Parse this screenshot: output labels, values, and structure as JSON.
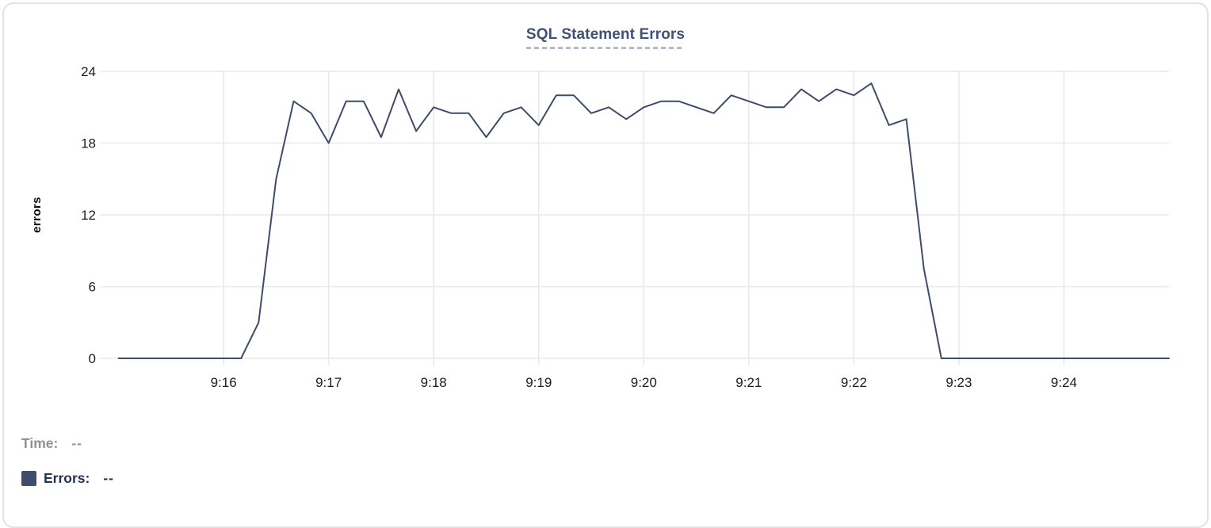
{
  "panel": {
    "title": "SQL Statement Errors"
  },
  "legend": {
    "time_label": "Time:",
    "time_value": "--",
    "errors_label": "Errors:",
    "errors_value": "--"
  },
  "colors": {
    "accent_line": "#3E4C6A",
    "grid": "#E9E9E9",
    "title": "#3F5273",
    "title_underline": "#AEBDD3",
    "tick_text": "#1C1C1C",
    "time_label": "#8D9197",
    "errors_label": "#26324E",
    "legend_swatch": "#3E4E68",
    "panel_border": "#E2E3E7"
  },
  "chart_data": {
    "type": "line",
    "title": "SQL Statement Errors",
    "xlabel": "",
    "ylabel": "errors",
    "ylim": [
      0,
      24
    ],
    "y_ticks": [
      0,
      6,
      12,
      18,
      24
    ],
    "x_ticks": [
      "9:16",
      "9:17",
      "9:18",
      "9:19",
      "9:20",
      "9:21",
      "9:22",
      "9:23",
      "9:24"
    ],
    "x_range": [
      "9:14:52",
      "9:25:00"
    ],
    "grid": true,
    "legend_position": "bottom-left",
    "series": [
      {
        "name": "Errors",
        "color": "#3E4C6A",
        "points": [
          [
            "9:15:00",
            0
          ],
          [
            "9:15:10",
            0
          ],
          [
            "9:15:20",
            0
          ],
          [
            "9:15:30",
            0
          ],
          [
            "9:15:40",
            0
          ],
          [
            "9:15:50",
            0
          ],
          [
            "9:16:00",
            0
          ],
          [
            "9:16:10",
            0
          ],
          [
            "9:16:20",
            3
          ],
          [
            "9:16:30",
            15
          ],
          [
            "9:16:40",
            21.5
          ],
          [
            "9:16:50",
            20.5
          ],
          [
            "9:17:00",
            18
          ],
          [
            "9:17:10",
            21.5
          ],
          [
            "9:17:20",
            21.5
          ],
          [
            "9:17:30",
            18.5
          ],
          [
            "9:17:40",
            22.5
          ],
          [
            "9:17:50",
            19
          ],
          [
            "9:18:00",
            21
          ],
          [
            "9:18:10",
            20.5
          ],
          [
            "9:18:20",
            20.5
          ],
          [
            "9:18:30",
            18.5
          ],
          [
            "9:18:40",
            20.5
          ],
          [
            "9:18:50",
            21
          ],
          [
            "9:19:00",
            19.5
          ],
          [
            "9:19:10",
            22
          ],
          [
            "9:19:20",
            22
          ],
          [
            "9:19:30",
            20.5
          ],
          [
            "9:19:40",
            21
          ],
          [
            "9:19:50",
            20
          ],
          [
            "9:20:00",
            21
          ],
          [
            "9:20:10",
            21.5
          ],
          [
            "9:20:20",
            21.5
          ],
          [
            "9:20:30",
            21
          ],
          [
            "9:20:40",
            20.5
          ],
          [
            "9:20:50",
            22
          ],
          [
            "9:21:00",
            21.5
          ],
          [
            "9:21:10",
            21
          ],
          [
            "9:21:20",
            21
          ],
          [
            "9:21:30",
            22.5
          ],
          [
            "9:21:40",
            21.5
          ],
          [
            "9:21:50",
            22.5
          ],
          [
            "9:22:00",
            22
          ],
          [
            "9:22:10",
            23
          ],
          [
            "9:22:20",
            19.5
          ],
          [
            "9:22:30",
            20
          ],
          [
            "9:22:40",
            7.5
          ],
          [
            "9:22:50",
            0
          ],
          [
            "9:23:00",
            0
          ],
          [
            "9:23:10",
            0
          ],
          [
            "9:23:20",
            0
          ],
          [
            "9:23:30",
            0
          ],
          [
            "9:23:40",
            0
          ],
          [
            "9:23:50",
            0
          ],
          [
            "9:24:00",
            0
          ],
          [
            "9:24:10",
            0
          ],
          [
            "9:24:20",
            0
          ],
          [
            "9:24:30",
            0
          ],
          [
            "9:24:40",
            0
          ],
          [
            "9:24:50",
            0
          ],
          [
            "9:25:00",
            0
          ]
        ]
      }
    ]
  }
}
